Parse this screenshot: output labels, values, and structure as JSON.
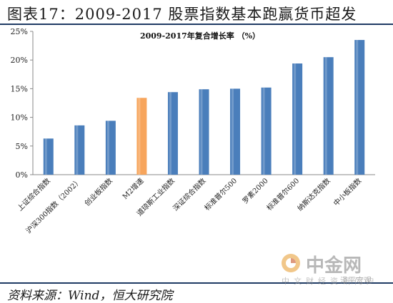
{
  "figure": {
    "title": "图表17：2009-2017 股票指数基本跑赢货币超发",
    "source": "资料来源：Wind，恒大研究院"
  },
  "watermark": {
    "name": "中金网",
    "subtitle": "中文财经资讯门户",
    "handle": "泽平宏观"
  },
  "colors": {
    "bar": "#4a7ebb",
    "bar_highlight": "#f7a55c",
    "rule": "#1f3b64"
  },
  "chart_data": {
    "type": "bar",
    "title": "2009-2017年复合增长率 （%）",
    "categories": [
      "上证综合指数",
      "沪深300指数（2002）",
      "创业板指数",
      "M2增速",
      "道琼斯工业指数",
      "深证综合指数",
      "标准普尔500",
      "罗素2000",
      "标准普尔600",
      "纳斯达克指数",
      "中小板指数"
    ],
    "values": [
      6.3,
      8.6,
      9.4,
      13.4,
      14.4,
      14.9,
      15.0,
      15.2,
      19.4,
      20.5,
      23.5
    ],
    "highlight": "M2增速",
    "ylim": [
      0,
      25
    ],
    "yticks": [
      "0%",
      "5%",
      "10%",
      "15%",
      "20%",
      "25%"
    ],
    "grid": false,
    "legend": false
  }
}
